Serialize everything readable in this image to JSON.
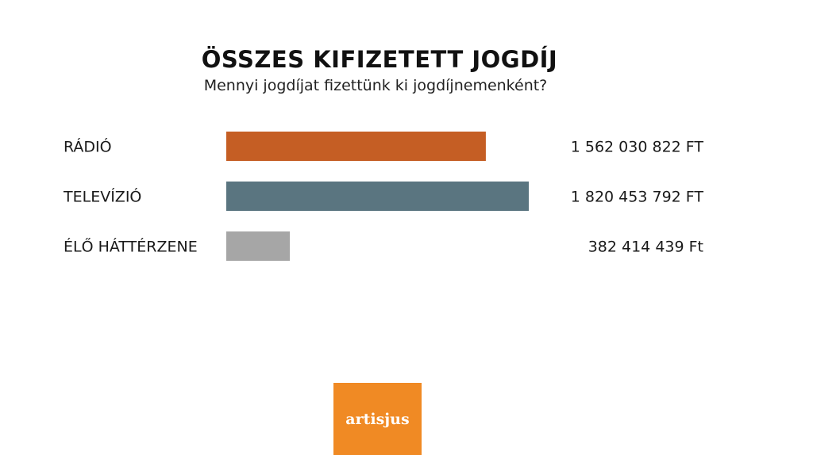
{
  "chart_data": {
    "type": "bar",
    "orientation": "horizontal",
    "title": "ÖSSZES KIFIZETETT JOGDÍJ",
    "subtitle": "Mennyi jogdíjat fizettünk ki jogdíjnemenként?",
    "categories": [
      "RÁDIÓ",
      "TELEVÍZIÓ",
      "ÉLŐ HÁTTÉRZENE"
    ],
    "values": [
      1562030822,
      1820453792,
      382414439
    ],
    "value_labels": [
      "1 562 030 822 FT",
      "1 820 453 792 FT",
      "382 414 439 Ft"
    ],
    "colors": [
      "#c55e24",
      "#5a7580",
      "#a6a6a6"
    ],
    "grid": false,
    "legend": "none"
  },
  "logo": {
    "text": "artisjus",
    "color": "#f08a24"
  }
}
